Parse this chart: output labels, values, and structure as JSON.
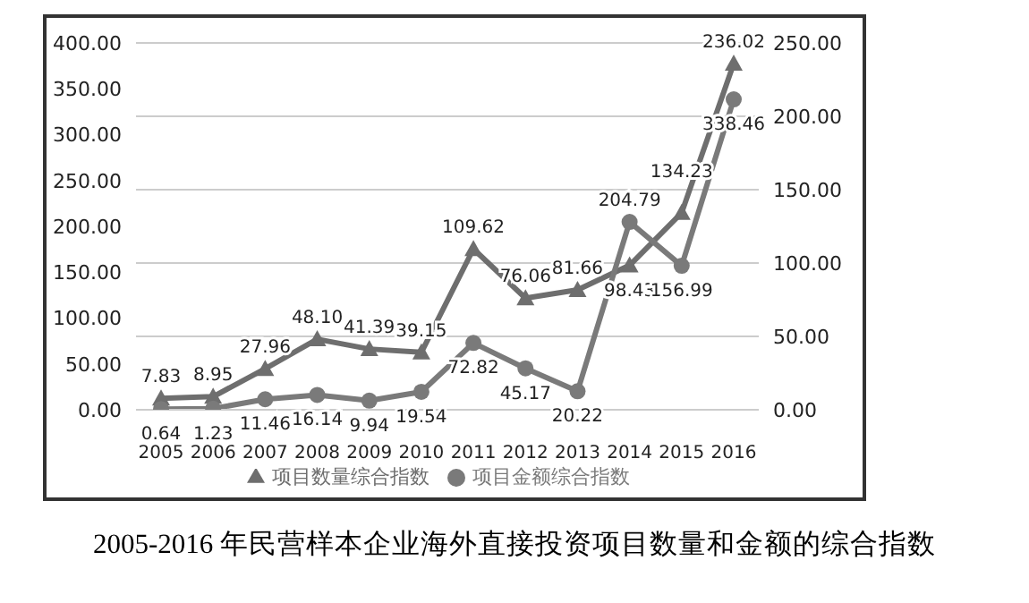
{
  "chart_data": {
    "type": "line",
    "title": "2005-2016 年民营样本企业海外直接投资项目数量和金额的综合指数",
    "categories": [
      "2005",
      "2006",
      "2007",
      "2008",
      "2009",
      "2010",
      "2011",
      "2012",
      "2013",
      "2014",
      "2015",
      "2016"
    ],
    "series": [
      {
        "name": "项目数量综合指数",
        "color": "#6e6e6e",
        "axis": "y2",
        "marker": "triangle",
        "values": [
          7.83,
          8.95,
          27.96,
          48.1,
          41.39,
          39.15,
          109.62,
          76.06,
          81.66,
          98.43,
          134.23,
          236.02
        ],
        "value_labels": [
          "7.83",
          "8.95",
          "27.96",
          "48.10",
          "41.39",
          "39.15",
          "109.62",
          "76.06",
          "81.66",
          "98.43",
          "134.23",
          "236.02"
        ]
      },
      {
        "name": "项目金额综合指数",
        "color": "#7a7a7a",
        "axis": "y",
        "marker": "circle",
        "values": [
          0.64,
          1.23,
          11.46,
          16.14,
          9.94,
          19.54,
          72.82,
          45.17,
          20.22,
          204.79,
          156.99,
          338.46
        ],
        "value_labels": [
          "0.64",
          "1.23",
          "11.46",
          "16.14",
          "9.94",
          "19.54",
          "72.82",
          "45.17",
          "20.22",
          "204.79",
          "156.99",
          "338.46"
        ]
      }
    ],
    "ylim": [
      0,
      400
    ],
    "yticks": [
      {
        "value": 0,
        "label": "0.00"
      },
      {
        "value": 50,
        "label": "50.00"
      },
      {
        "value": 100,
        "label": "100.00"
      },
      {
        "value": 150,
        "label": "150.00"
      },
      {
        "value": 200,
        "label": "200.00"
      },
      {
        "value": 250,
        "label": "250.00"
      },
      {
        "value": 300,
        "label": "300.00"
      },
      {
        "value": 350,
        "label": "350.00"
      },
      {
        "value": 400,
        "label": "400.00"
      }
    ],
    "y2lim": [
      0,
      250
    ],
    "y2ticks": [
      {
        "value": 0,
        "label": "0.00"
      },
      {
        "value": 50,
        "label": "50.00"
      },
      {
        "value": 100,
        "label": "100.00"
      },
      {
        "value": 150,
        "label": "150.00"
      },
      {
        "value": 200,
        "label": "200.00"
      },
      {
        "value": 250,
        "label": "250.00"
      }
    ],
    "grid": "y2",
    "legend": "bottom"
  }
}
